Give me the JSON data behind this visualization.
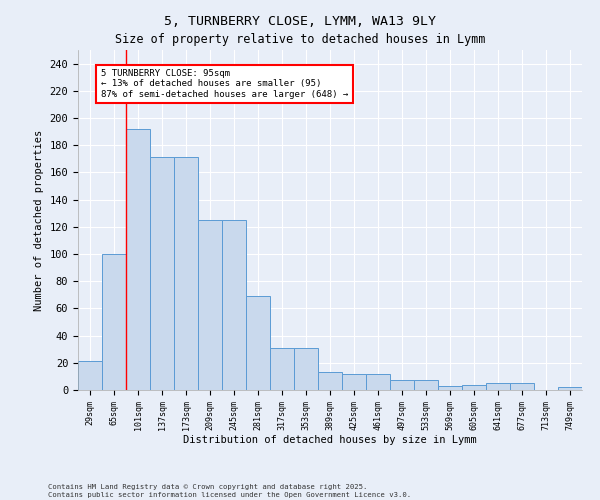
{
  "title": "5, TURNBERRY CLOSE, LYMM, WA13 9LY",
  "subtitle": "Size of property relative to detached houses in Lymm",
  "xlabel": "Distribution of detached houses by size in Lymm",
  "ylabel": "Number of detached properties",
  "bar_labels": [
    "29sqm",
    "65sqm",
    "101sqm",
    "137sqm",
    "173sqm",
    "209sqm",
    "245sqm",
    "281sqm",
    "317sqm",
    "353sqm",
    "389sqm",
    "425sqm",
    "461sqm",
    "497sqm",
    "533sqm",
    "569sqm",
    "605sqm",
    "641sqm",
    "677sqm",
    "713sqm",
    "749sqm"
  ],
  "bar_values": [
    21,
    100,
    192,
    171,
    171,
    125,
    125,
    69,
    31,
    31,
    13,
    12,
    12,
    7,
    7,
    3,
    4,
    5,
    5,
    0,
    2
  ],
  "bar_color": "#c9d9ed",
  "bar_edge_color": "#5b9bd5",
  "red_line_x": 1.5,
  "annotation_text": "5 TURNBERRY CLOSE: 95sqm\n← 13% of detached houses are smaller (95)\n87% of semi-detached houses are larger (648) →",
  "annotation_box_color": "white",
  "annotation_box_edge": "red",
  "ylim": [
    0,
    250
  ],
  "yticks": [
    0,
    20,
    40,
    60,
    80,
    100,
    120,
    140,
    160,
    180,
    200,
    220,
    240
  ],
  "footer_line1": "Contains HM Land Registry data © Crown copyright and database right 2025.",
  "footer_line2": "Contains public sector information licensed under the Open Government Licence v3.0.",
  "background_color": "#e8eef8",
  "plot_bg_color": "#e8eef8",
  "grid_color": "white"
}
